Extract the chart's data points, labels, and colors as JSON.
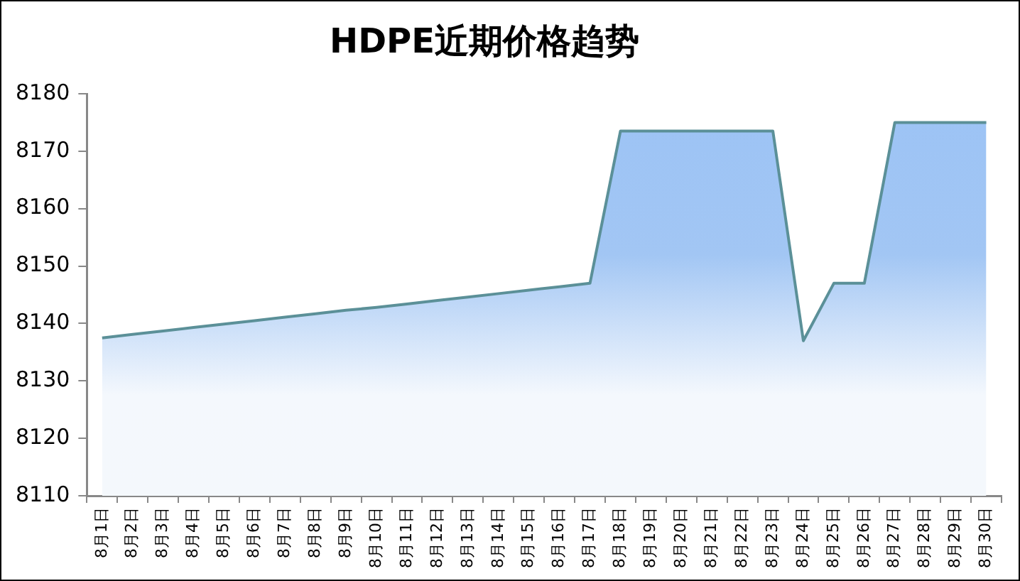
{
  "chart_data": {
    "type": "area",
    "title": "HDPE近期价格趋势",
    "categories": [
      "8月1日",
      "8月2日",
      "8月3日",
      "8月4日",
      "8月5日",
      "8月6日",
      "8月7日",
      "8月8日",
      "8月9日",
      "8月10日",
      "8月11日",
      "8月12日",
      "8月13日",
      "8月14日",
      "8月15日",
      "8月16日",
      "8月17日",
      "8月18日",
      "8月19日",
      "8月20日",
      "8月21日",
      "8月22日",
      "8月23日",
      "8月24日",
      "8月25日",
      "8月26日",
      "8月27日",
      "8月28日",
      "8月29日",
      "8月30日"
    ],
    "series": [
      {
        "color": "#5b9098",
        "values": [
          8137.5,
          8138.1,
          8138.7,
          8139.3,
          8139.9,
          8140.5,
          8141.1,
          8141.7,
          8142.3,
          8142.8,
          8143.4,
          8144,
          8144.6,
          8145.2,
          8145.8,
          8146.4,
          8147,
          8173.5,
          8173.5,
          8173.5,
          8173.5,
          8173.5,
          8173.5,
          8137,
          8147,
          8147,
          8175,
          8175,
          8175,
          8175
        ]
      }
    ],
    "ylim": [
      8110,
      8180
    ],
    "yticks": [
      8110,
      8120,
      8130,
      8140,
      8150,
      8160,
      8170,
      8180
    ],
    "grid": false,
    "legend": false,
    "marker": "none",
    "line_style": "solid"
  }
}
